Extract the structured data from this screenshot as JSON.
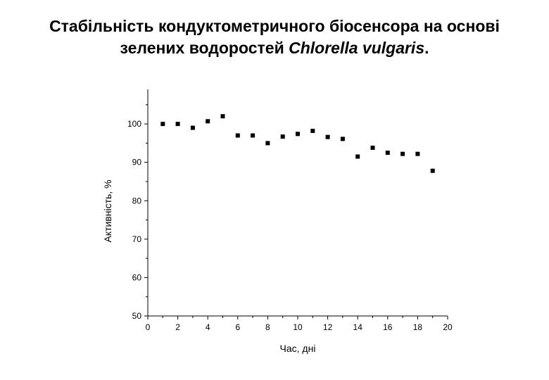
{
  "title": {
    "line1": "Стабільність кондуктометричного біосенсора на основі",
    "line2_prefix": "зелених водоростей ",
    "line2_species": "Chlorella vulgaris",
    "line2_suffix": "."
  },
  "chart_data": {
    "type": "scatter",
    "title": "Стабільність кондуктометричного біосенсора на основі зелених водоростей Chlorella vulgaris.",
    "xlabel": "Час, дні",
    "ylabel": "Активність, %",
    "xlim": [
      0,
      20
    ],
    "ylim": [
      50,
      109
    ],
    "xticks": [
      0,
      2,
      4,
      6,
      8,
      10,
      12,
      14,
      16,
      18,
      20
    ],
    "xtick_labels": [
      "0",
      "2",
      "4",
      "6",
      "8",
      "10",
      "12",
      "14",
      "16",
      "18",
      "20"
    ],
    "yticks": [
      50,
      60,
      70,
      80,
      90,
      100
    ],
    "ytick_labels": [
      "50",
      "60",
      "70",
      "80",
      "90",
      "100"
    ],
    "grid": false,
    "marker": "square",
    "marker_color": "#000000",
    "series": [
      {
        "x": [
          1,
          2,
          3,
          4,
          5,
          6,
          7,
          8,
          9,
          10,
          11,
          12,
          13,
          14,
          15,
          16,
          17,
          18,
          19
        ],
        "y": [
          100.0,
          100.0,
          99.0,
          100.7,
          102.0,
          97.0,
          97.0,
          95.0,
          96.7,
          97.4,
          98.2,
          96.6,
          96.1,
          91.5,
          93.8,
          92.5,
          92.2,
          92.2,
          87.8
        ]
      }
    ]
  }
}
